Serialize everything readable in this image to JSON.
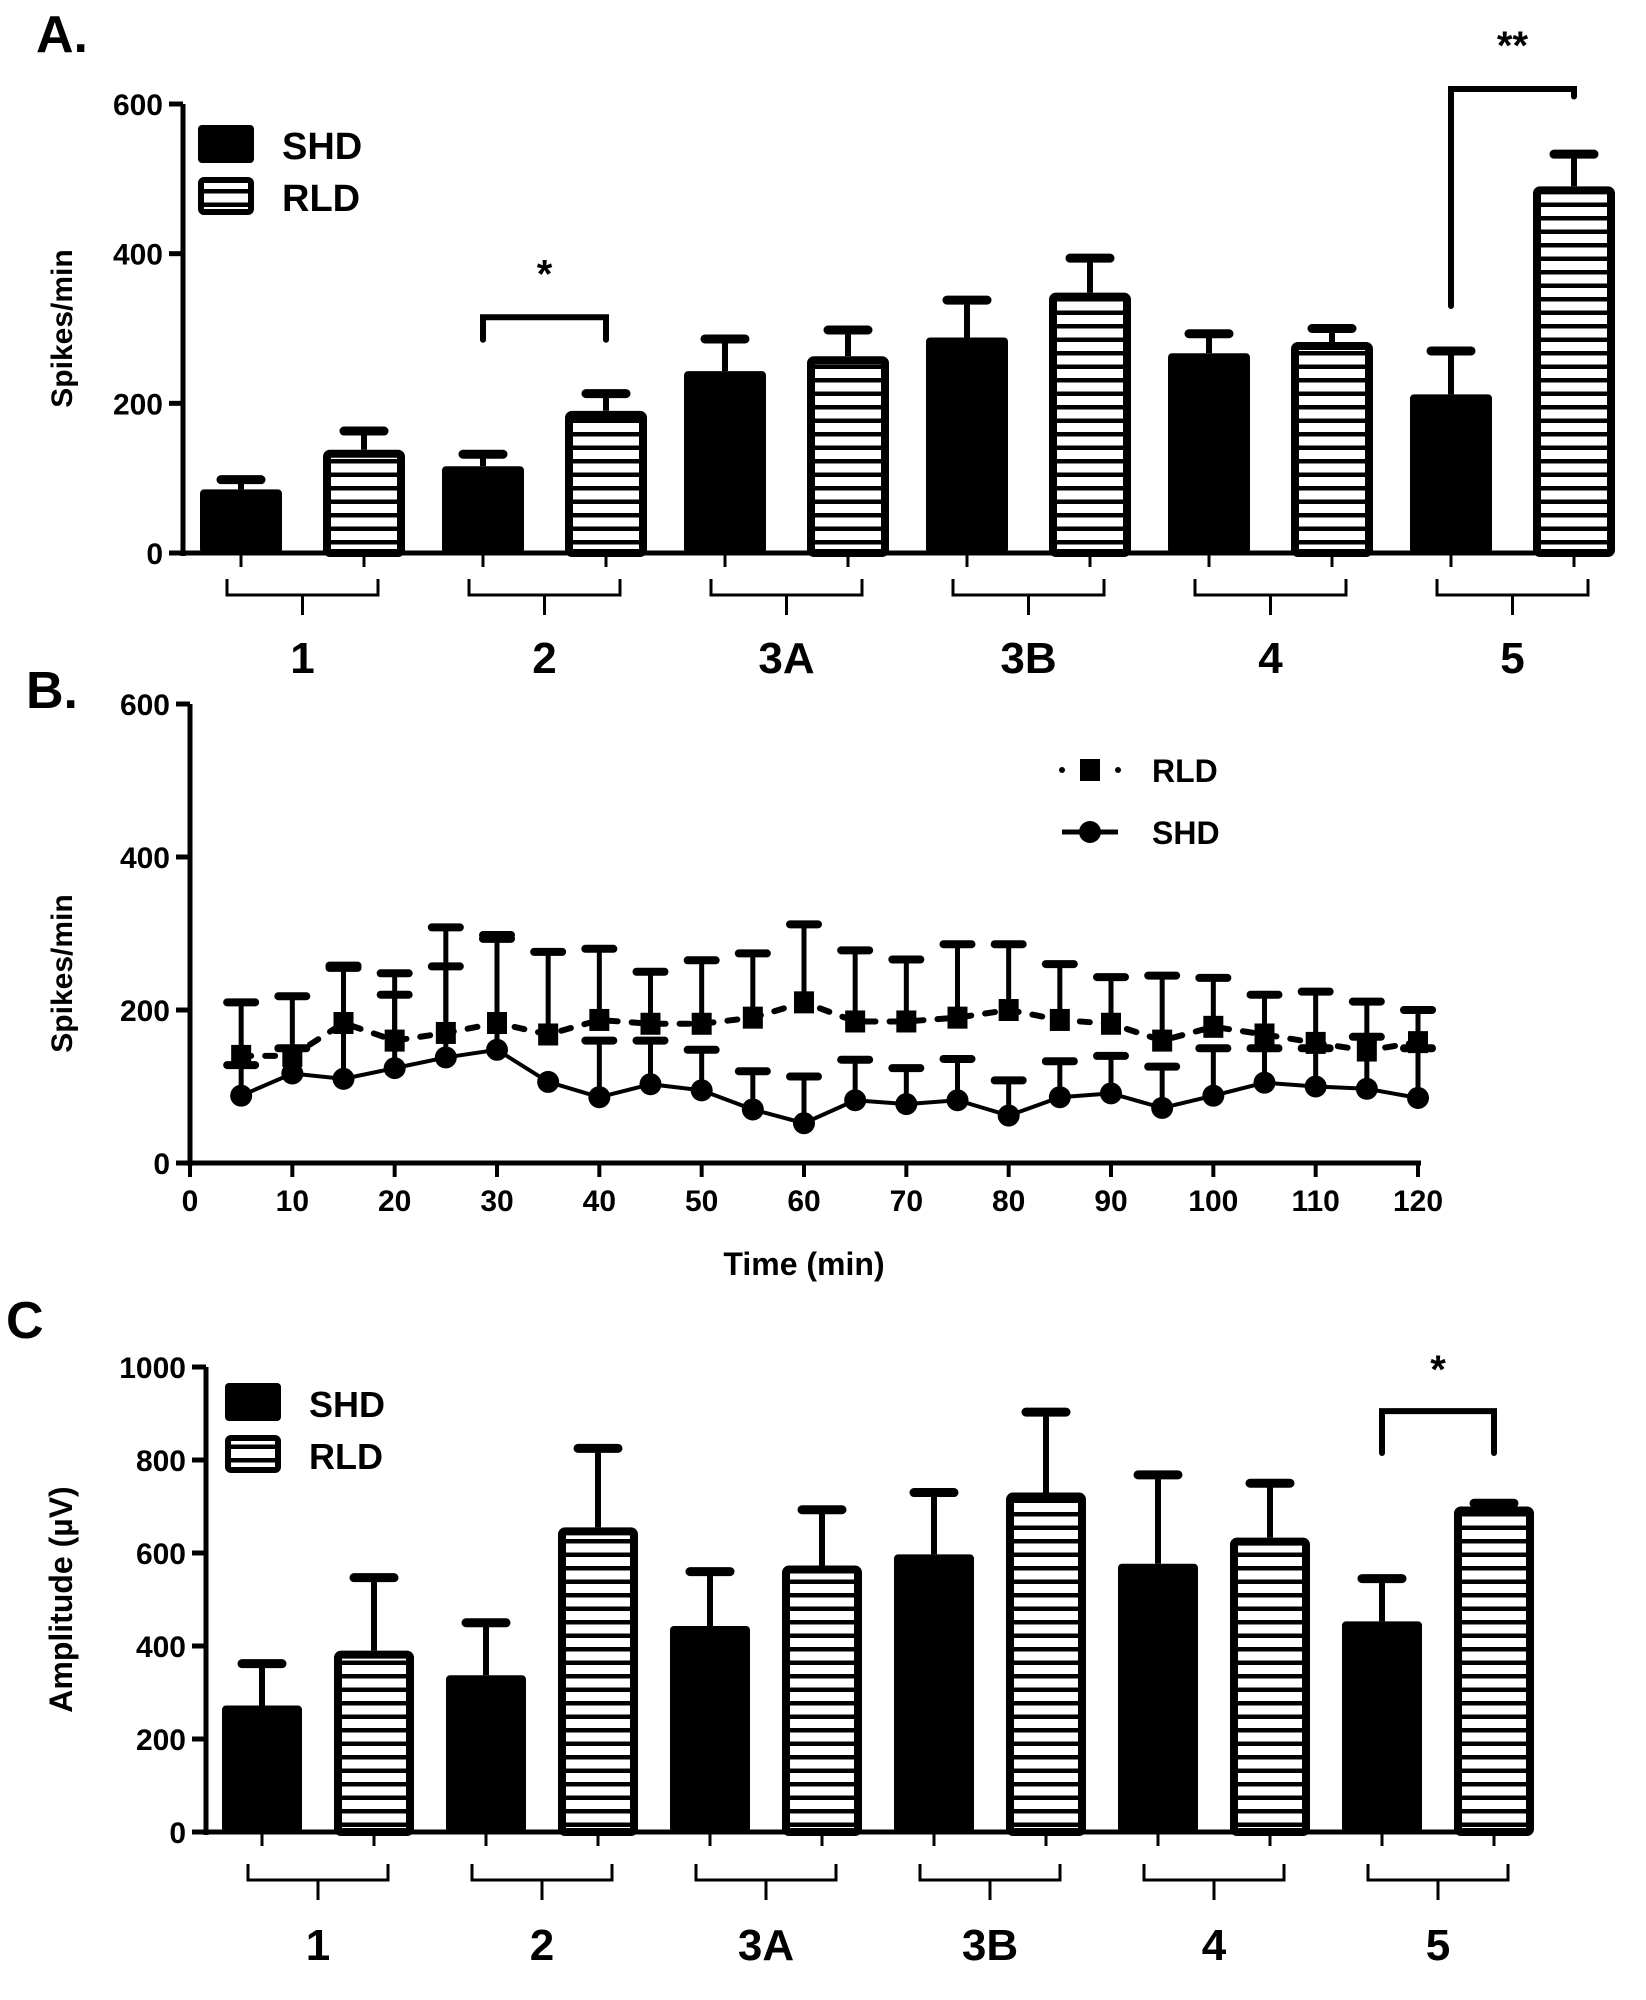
{
  "figure": {
    "panel_labels": [
      "A.",
      "B.",
      "C"
    ]
  },
  "chart_data": [
    {
      "panel": "A.",
      "type": "bar",
      "title": "",
      "xlabel": "",
      "ylabel": "Spikes/min",
      "ylim": [
        0,
        600
      ],
      "yticks": [
        0,
        200,
        400,
        600
      ],
      "categories": [
        "1",
        "2",
        "3A",
        "3B",
        "4",
        "5"
      ],
      "legend": {
        "position": "top-left",
        "entries": [
          "SHD",
          "RLD"
        ]
      },
      "series": [
        {
          "name": "SHD",
          "fill": "solid",
          "values": [
            85,
            116,
            243,
            288,
            267,
            212
          ],
          "error_upper": [
            98,
            132,
            286,
            338,
            293,
            270
          ]
        },
        {
          "name": "RLD",
          "fill": "horizontal-stripes",
          "values": [
            138,
            190,
            263,
            348,
            282,
            490
          ],
          "error_upper": [
            163,
            213,
            298,
            394,
            300,
            533
          ]
        }
      ],
      "significance": [
        {
          "category": "2",
          "label": "*",
          "bracket_top": 315,
          "bracket_ends": [
            285,
            285
          ]
        },
        {
          "category": "5",
          "label": "**",
          "bracket_top": 620,
          "bracket_ends": [
            330,
            610
          ]
        }
      ]
    },
    {
      "panel": "B.",
      "type": "line",
      "title": "",
      "xlabel": "Time (min)",
      "ylabel": "Spikes/min",
      "xlim": [
        0,
        120
      ],
      "ylim": [
        0,
        600
      ],
      "xticks": [
        0,
        10,
        20,
        30,
        40,
        50,
        60,
        70,
        80,
        90,
        100,
        110,
        120
      ],
      "yticks": [
        0,
        200,
        400,
        600
      ],
      "legend": {
        "position": "top-right",
        "entries": [
          "RLD",
          "SHD"
        ]
      },
      "x": [
        5,
        10,
        15,
        20,
        25,
        30,
        35,
        40,
        45,
        50,
        55,
        60,
        65,
        70,
        75,
        80,
        85,
        90,
        95,
        100,
        105,
        110,
        115,
        120
      ],
      "series": [
        {
          "name": "RLD",
          "marker": "square",
          "line": "dashed",
          "values": [
            140,
            140,
            183,
            160,
            170,
            183,
            168,
            187,
            182,
            182,
            190,
            210,
            185,
            185,
            190,
            200,
            187,
            182,
            160,
            178,
            168,
            157,
            147,
            158
          ],
          "error_upper": [
            210,
            218,
            258,
            248,
            308,
            298,
            276,
            280,
            250,
            265,
            274,
            312,
            278,
            266,
            286,
            286,
            260,
            243,
            245,
            242,
            220,
            224,
            211,
            200
          ]
        },
        {
          "name": "SHD",
          "marker": "circle",
          "line": "solid",
          "values": [
            88,
            117,
            110,
            124,
            138,
            148,
            106,
            86,
            103,
            95,
            70,
            52,
            82,
            77,
            82,
            62,
            86,
            91,
            72,
            88,
            105,
            100,
            97,
            85
          ],
          "error_upper": [
            128,
            150,
            255,
            220,
            257,
            293,
            106,
            160,
            160,
            148,
            120,
            113,
            135,
            124,
            136,
            108,
            133,
            140,
            126,
            150,
            150,
            150,
            165,
            150
          ]
        }
      ]
    },
    {
      "panel": "C",
      "type": "bar",
      "title": "",
      "xlabel": "",
      "ylabel": "Amplitude (µV)",
      "ylim": [
        0,
        1000
      ],
      "yticks": [
        0,
        200,
        400,
        600,
        800,
        1000
      ],
      "categories": [
        "1",
        "2",
        "3A",
        "3B",
        "4",
        "5"
      ],
      "legend": {
        "position": "top-left",
        "entries": [
          "SHD",
          "RLD"
        ]
      },
      "series": [
        {
          "name": "SHD",
          "fill": "solid",
          "values": [
            272,
            337,
            443,
            597,
            577,
            453
          ],
          "error_upper": [
            362,
            450,
            560,
            730,
            768,
            545
          ]
        },
        {
          "name": "RLD",
          "fill": "horizontal-stripes",
          "values": [
            390,
            655,
            573,
            730,
            633,
            700
          ],
          "error_upper": [
            547,
            825,
            693,
            903,
            750,
            707
          ]
        }
      ],
      "significance": [
        {
          "category": "5",
          "label": "*",
          "bracket_top": 905,
          "bracket_ends": [
            815,
            815
          ]
        }
      ]
    }
  ]
}
